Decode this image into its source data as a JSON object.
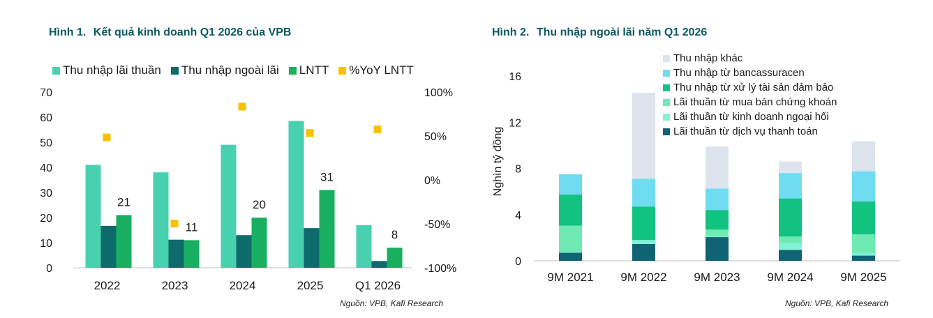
{
  "figure1": {
    "number": "Hình 1.",
    "title": "Kết quả kinh doanh Q1 2026 của VPB",
    "source": "Nguồn: VPB, Kafi Research"
  },
  "figure2": {
    "number": "Hình 2.",
    "title": "Thu nhập ngoài lãi năm Q1 2026",
    "source": "Nguồn: VPB, Kafi Research"
  },
  "chart_data": [
    {
      "type": "bar",
      "categories": [
        "2022",
        "2023",
        "2024",
        "2025",
        "Q1 2026"
      ],
      "series": [
        {
          "name": "Thu nhập lãi thuần",
          "color": "#47d1ae",
          "values": [
            41,
            38,
            49,
            58.5,
            17
          ]
        },
        {
          "name": "Thu nhập ngoài lãi",
          "color": "#0f6b6b",
          "values": [
            16.7,
            11.2,
            13,
            15.8,
            2.7
          ]
        },
        {
          "name": "LNTT",
          "color": "#18b060",
          "values": [
            21,
            11,
            20,
            31,
            8
          ],
          "labels": [
            "21",
            "11",
            "20",
            "31",
            "8"
          ]
        },
        {
          "name": "%YoY LNTT",
          "color": "#f7c200",
          "kind": "marker",
          "axis": "right",
          "values": [
            48,
            -50,
            83,
            53,
            57
          ]
        }
      ],
      "ylim": [
        0,
        70
      ],
      "yticks": [
        "0",
        "10",
        "20",
        "30",
        "40",
        "50",
        "60",
        "70"
      ],
      "y2lim": [
        -100,
        100
      ],
      "y2ticks": [
        "-100%",
        "-50%",
        "0%",
        "50%",
        "100%"
      ],
      "legend": "top"
    },
    {
      "type": "bar",
      "stacked": true,
      "categories": [
        "9M 2021",
        "9M 2022",
        "9M 2023",
        "9M 2024",
        "9M 2025"
      ],
      "ylabel": "Nghìn tỷ đồng",
      "ylim": [
        0,
        16
      ],
      "yticks": [
        "0",
        "4",
        "8",
        "12",
        "16"
      ],
      "series": [
        {
          "name": "Lãi thuần từ dịch vụ thanh toán",
          "color": "#0f6373",
          "values": [
            0.7,
            1.45,
            2.05,
            0.95,
            0.45
          ]
        },
        {
          "name": "Lãi thuần từ kinh doanh ngoại hối",
          "color": "#7ff2d6",
          "values": [
            0.05,
            0.35,
            0.05,
            0.55,
            0.25
          ]
        },
        {
          "name": "Lãi thuần từ mua bán chứng khoán",
          "color": "#6eeab2",
          "values": [
            2.3,
            0,
            0.6,
            0.6,
            1.6
          ]
        },
        {
          "name": "Thu nhập từ xử lý tài sản đảm bảo",
          "color": "#12c281",
          "values": [
            2.7,
            2.9,
            1.7,
            3.3,
            2.85
          ]
        },
        {
          "name": "Thu nhập từ bancassuracen",
          "color": "#6fdcf2",
          "values": [
            1.75,
            2.4,
            1.85,
            2.2,
            2.6
          ]
        },
        {
          "name": "Thu nhập khác",
          "color": "#dde4ee",
          "values": [
            0,
            7.45,
            3.65,
            1.0,
            2.6
          ]
        }
      ],
      "legend": "top-right"
    }
  ]
}
